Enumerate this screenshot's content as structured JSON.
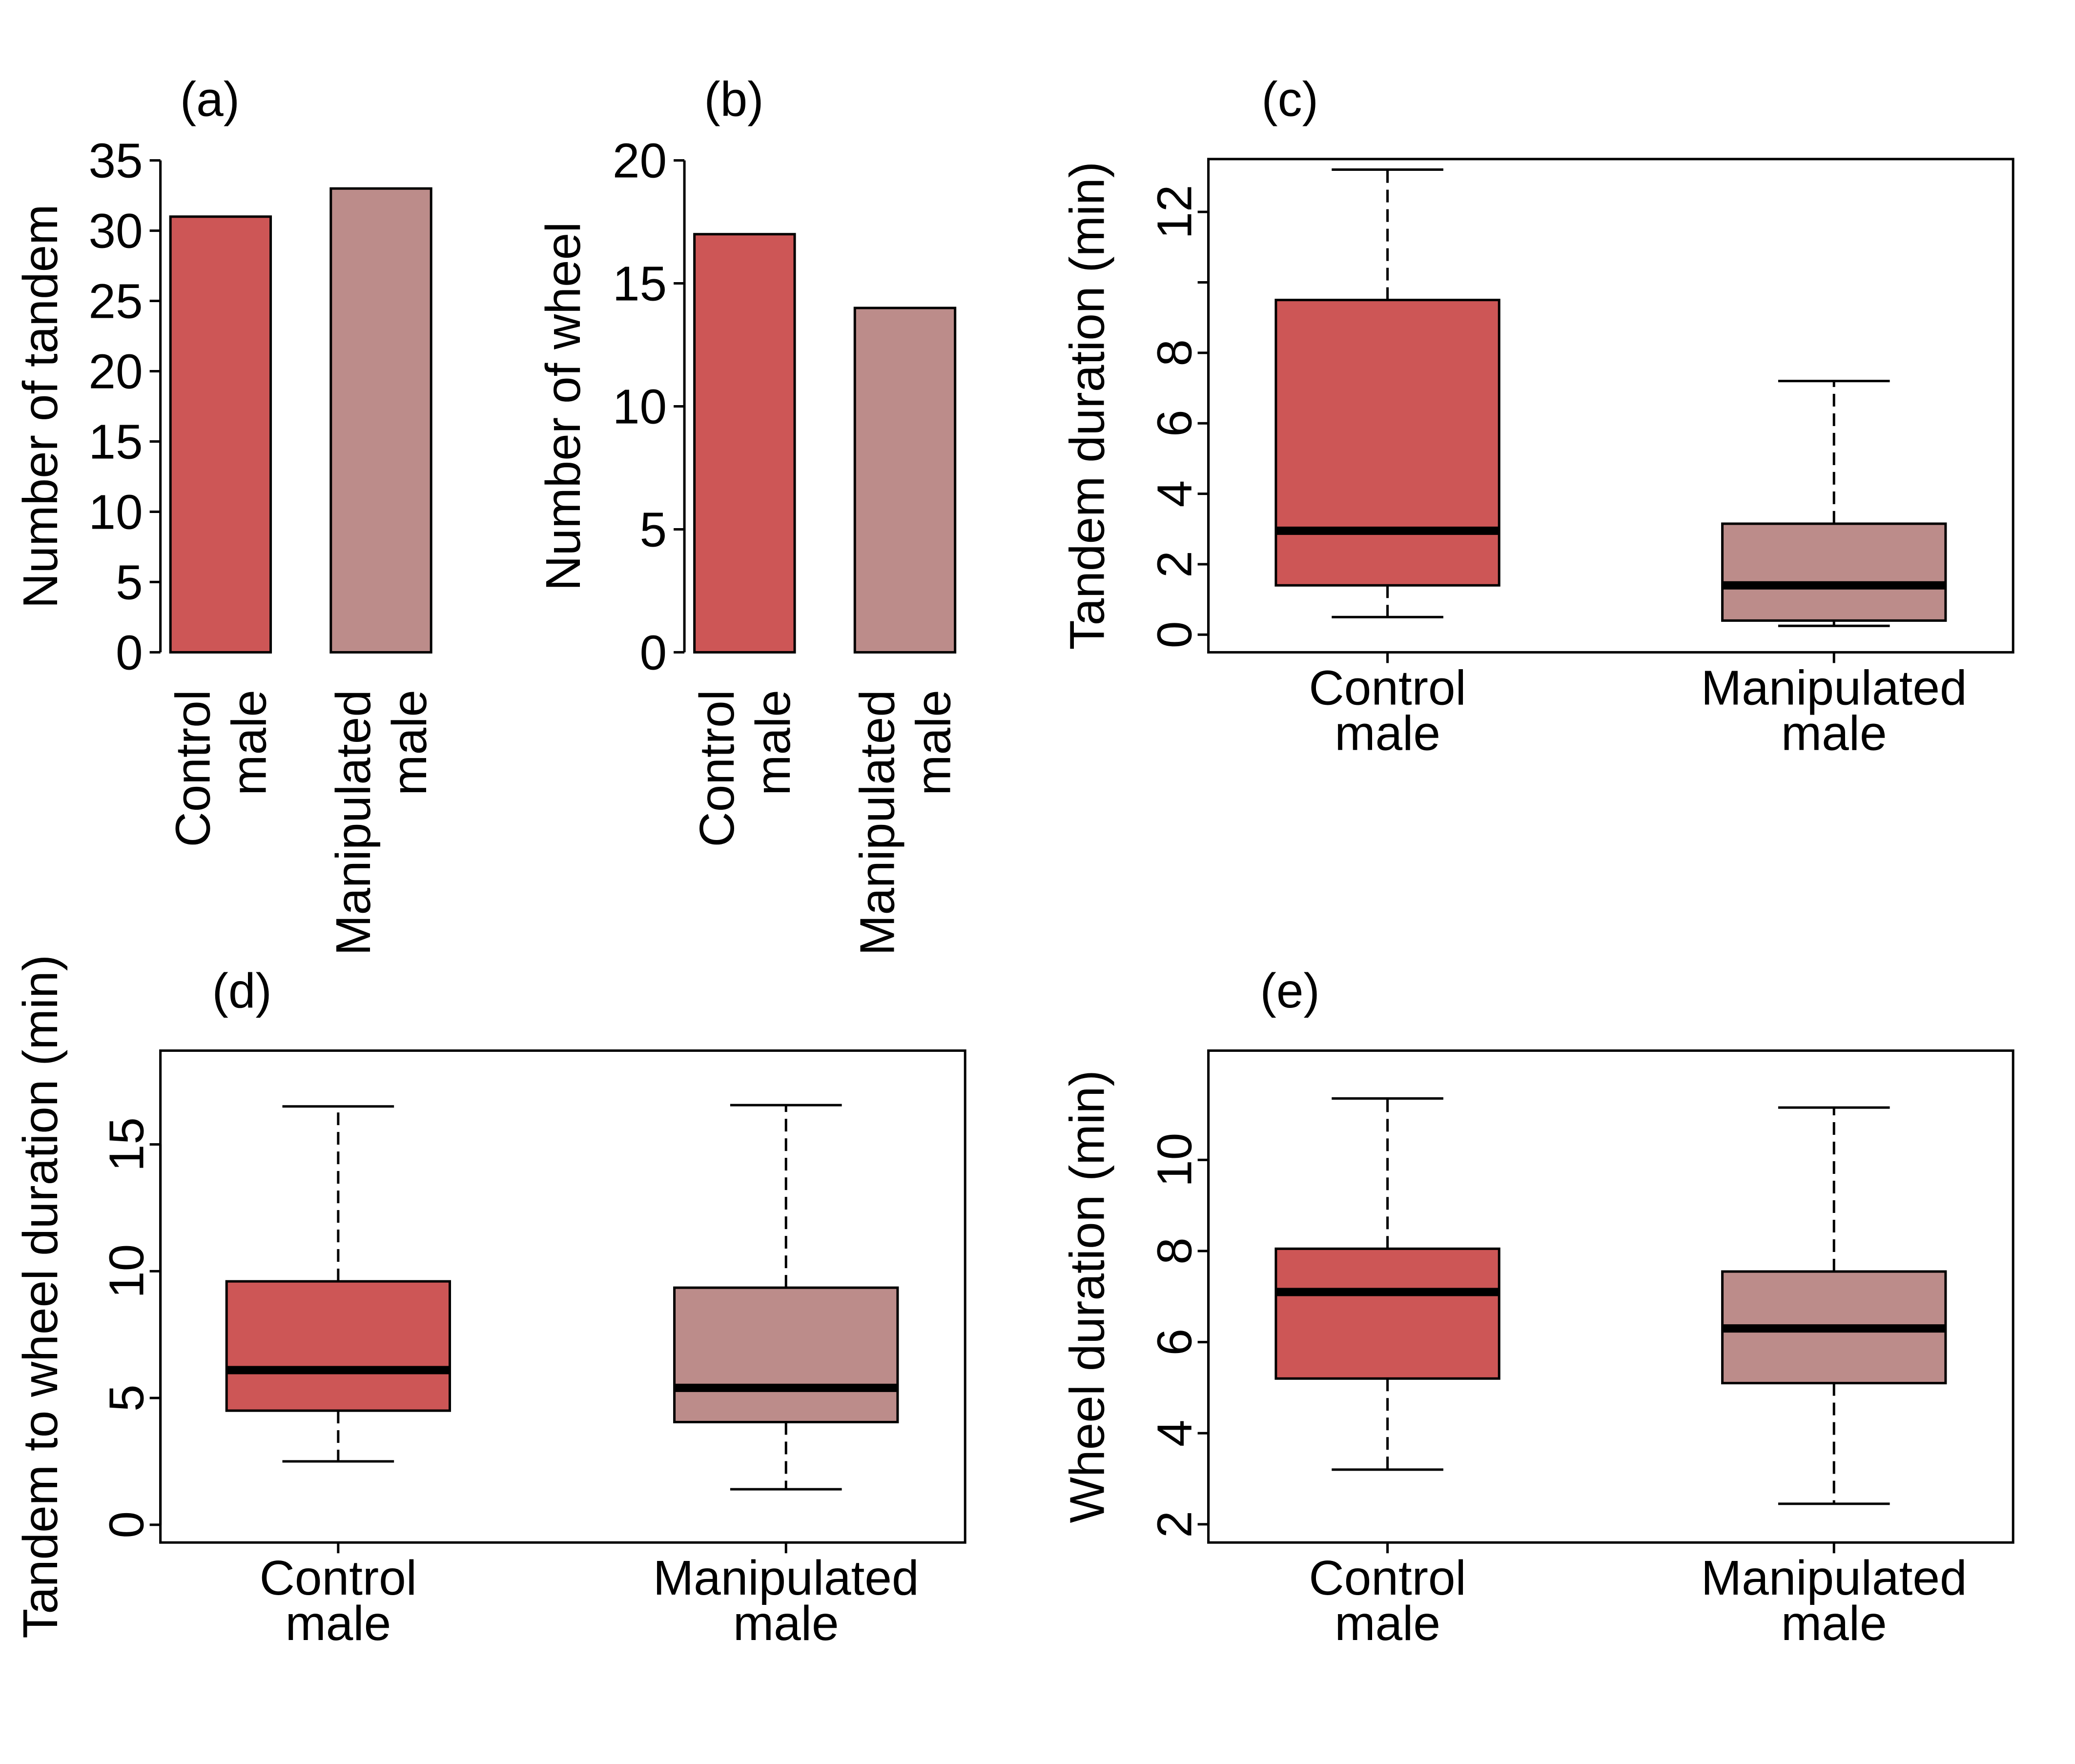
{
  "colors": {
    "control": "#cd5656",
    "manipulated": "#bc8c8a",
    "stroke": "#000000"
  },
  "chart_data": [
    {
      "panel": "(a)",
      "type": "bar",
      "categories": [
        "Control\nmale",
        "Manipulated\nmale"
      ],
      "values": [
        31,
        33
      ],
      "ylabel": "Number of tandem",
      "ylim": [
        0,
        35
      ],
      "yticks": [
        0,
        5,
        10,
        15,
        20,
        25,
        30,
        35
      ],
      "xlabel_orientation": "vertical"
    },
    {
      "panel": "(b)",
      "type": "bar",
      "categories": [
        "Control\nmale",
        "Manipulated\nmale"
      ],
      "values": [
        17,
        14
      ],
      "ylabel": "Number of wheel",
      "ylim": [
        0,
        20
      ],
      "yticks": [
        0,
        5,
        10,
        15,
        20
      ],
      "xlabel_orientation": "vertical"
    },
    {
      "panel": "(c)",
      "type": "boxplot",
      "categories": [
        "Control\nmale",
        "Manipulated\nmale"
      ],
      "boxes": [
        {
          "whisker_low": 0.5,
          "q1": 1.4,
          "median": 2.95,
          "q3": 9.5,
          "whisker_high": 13.2
        },
        {
          "whisker_low": 0.25,
          "q1": 0.4,
          "median": 1.4,
          "q3": 3.15,
          "whisker_high": 7.2
        }
      ],
      "ylabel": "Tandem duration (min)",
      "ylim": [
        -0.5,
        13.5
      ],
      "yticks": [
        0,
        2,
        4,
        6,
        8,
        10,
        12
      ],
      "ytick_labels": [
        "0",
        "2",
        "4",
        "6",
        "8",
        "",
        "12"
      ]
    },
    {
      "panel": "(d)",
      "type": "boxplot",
      "categories": [
        "Control\nmale",
        "Manipulated\nmale"
      ],
      "boxes": [
        {
          "whisker_low": 2.5,
          "q1": 4.5,
          "median": 6.1,
          "q3": 9.6,
          "whisker_high": 16.5
        },
        {
          "whisker_low": 1.4,
          "q1": 4.05,
          "median": 5.4,
          "q3": 9.35,
          "whisker_high": 16.55
        }
      ],
      "ylabel": "Tandem to wheel duration (min)",
      "ylim": [
        -0.7,
        18.7
      ],
      "yticks": [
        0,
        5,
        10,
        15
      ],
      "ytick_labels": [
        "0",
        "5",
        "10",
        "15"
      ]
    },
    {
      "panel": "(e)",
      "type": "boxplot",
      "categories": [
        "Control\nmale",
        "Manipulated\nmale"
      ],
      "boxes": [
        {
          "whisker_low": 3.2,
          "q1": 5.2,
          "median": 7.1,
          "q3": 8.05,
          "whisker_high": 11.35
        },
        {
          "whisker_low": 2.45,
          "q1": 5.1,
          "median": 6.3,
          "q3": 7.55,
          "whisker_high": 11.15
        }
      ],
      "ylabel": "Wheel duration (min)",
      "ylim": [
        1.6,
        12.4
      ],
      "yticks": [
        2,
        4,
        6,
        8,
        10
      ],
      "ytick_labels": [
        "2",
        "4",
        "6",
        "8",
        "10"
      ]
    }
  ]
}
